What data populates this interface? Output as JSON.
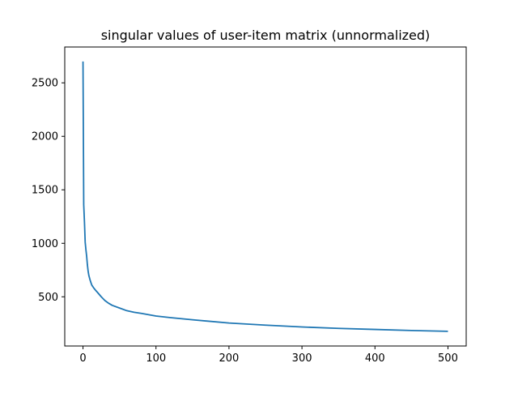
{
  "chart_data": {
    "type": "line",
    "title": "singular values of user-item matrix (unnormalized)",
    "xlabel": "",
    "ylabel": "",
    "xlim": [
      -25,
      525
    ],
    "ylim": [
      40,
      2835
    ],
    "xticks": [
      0,
      100,
      200,
      300,
      400,
      500
    ],
    "yticks": [
      500,
      1000,
      1500,
      2000,
      2500
    ],
    "grid": false,
    "series": [
      {
        "color": "#1f77b4",
        "x": [
          0,
          1,
          2,
          3,
          4,
          5,
          6,
          7,
          8,
          10,
          12,
          15,
          18,
          20,
          25,
          30,
          35,
          40,
          50,
          60,
          70,
          80,
          100,
          120,
          150,
          200,
          250,
          300,
          350,
          400,
          450,
          500
        ],
        "y": [
          2700,
          1360,
          1200,
          1010,
          940,
          880,
          800,
          740,
          700,
          650,
          610,
          580,
          555,
          540,
          500,
          465,
          440,
          420,
          395,
          370,
          355,
          345,
          320,
          305,
          285,
          255,
          235,
          218,
          205,
          195,
          185,
          177
        ]
      }
    ]
  }
}
